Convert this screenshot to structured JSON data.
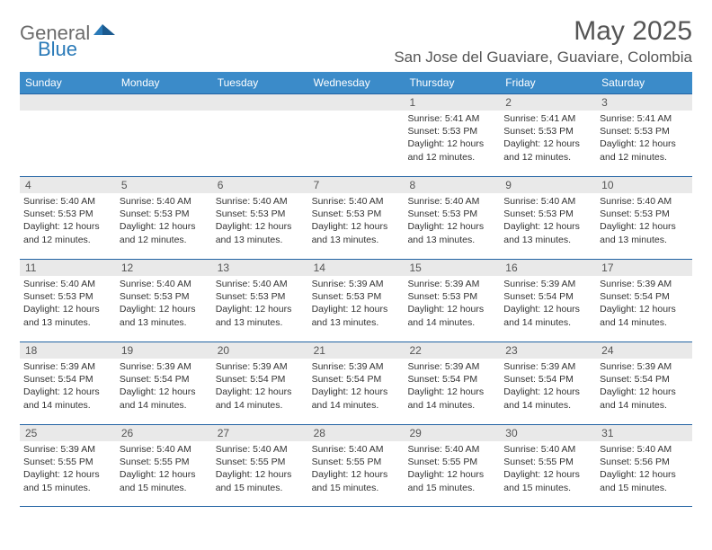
{
  "logo": {
    "text1": "General",
    "text2": "Blue"
  },
  "title": "May 2025",
  "location": "San Jose del Guaviare, Guaviare, Colombia",
  "colors": {
    "headerBar": "#3b8bc9",
    "weekBorder": "#2263a3",
    "dayNumBg": "#e9e9e9",
    "textDark": "#333333",
    "textMuted": "#555555"
  },
  "dow": [
    "Sunday",
    "Monday",
    "Tuesday",
    "Wednesday",
    "Thursday",
    "Friday",
    "Saturday"
  ],
  "weeks": [
    [
      {
        "n": "",
        "sr": "",
        "ss": "",
        "dl": ""
      },
      {
        "n": "",
        "sr": "",
        "ss": "",
        "dl": ""
      },
      {
        "n": "",
        "sr": "",
        "ss": "",
        "dl": ""
      },
      {
        "n": "",
        "sr": "",
        "ss": "",
        "dl": ""
      },
      {
        "n": "1",
        "sr": "5:41 AM",
        "ss": "5:53 PM",
        "dl": "12 hours and 12 minutes."
      },
      {
        "n": "2",
        "sr": "5:41 AM",
        "ss": "5:53 PM",
        "dl": "12 hours and 12 minutes."
      },
      {
        "n": "3",
        "sr": "5:41 AM",
        "ss": "5:53 PM",
        "dl": "12 hours and 12 minutes."
      }
    ],
    [
      {
        "n": "4",
        "sr": "5:40 AM",
        "ss": "5:53 PM",
        "dl": "12 hours and 12 minutes."
      },
      {
        "n": "5",
        "sr": "5:40 AM",
        "ss": "5:53 PM",
        "dl": "12 hours and 12 minutes."
      },
      {
        "n": "6",
        "sr": "5:40 AM",
        "ss": "5:53 PM",
        "dl": "12 hours and 13 minutes."
      },
      {
        "n": "7",
        "sr": "5:40 AM",
        "ss": "5:53 PM",
        "dl": "12 hours and 13 minutes."
      },
      {
        "n": "8",
        "sr": "5:40 AM",
        "ss": "5:53 PM",
        "dl": "12 hours and 13 minutes."
      },
      {
        "n": "9",
        "sr": "5:40 AM",
        "ss": "5:53 PM",
        "dl": "12 hours and 13 minutes."
      },
      {
        "n": "10",
        "sr": "5:40 AM",
        "ss": "5:53 PM",
        "dl": "12 hours and 13 minutes."
      }
    ],
    [
      {
        "n": "11",
        "sr": "5:40 AM",
        "ss": "5:53 PM",
        "dl": "12 hours and 13 minutes."
      },
      {
        "n": "12",
        "sr": "5:40 AM",
        "ss": "5:53 PM",
        "dl": "12 hours and 13 minutes."
      },
      {
        "n": "13",
        "sr": "5:40 AM",
        "ss": "5:53 PM",
        "dl": "12 hours and 13 minutes."
      },
      {
        "n": "14",
        "sr": "5:39 AM",
        "ss": "5:53 PM",
        "dl": "12 hours and 13 minutes."
      },
      {
        "n": "15",
        "sr": "5:39 AM",
        "ss": "5:53 PM",
        "dl": "12 hours and 14 minutes."
      },
      {
        "n": "16",
        "sr": "5:39 AM",
        "ss": "5:54 PM",
        "dl": "12 hours and 14 minutes."
      },
      {
        "n": "17",
        "sr": "5:39 AM",
        "ss": "5:54 PM",
        "dl": "12 hours and 14 minutes."
      }
    ],
    [
      {
        "n": "18",
        "sr": "5:39 AM",
        "ss": "5:54 PM",
        "dl": "12 hours and 14 minutes."
      },
      {
        "n": "19",
        "sr": "5:39 AM",
        "ss": "5:54 PM",
        "dl": "12 hours and 14 minutes."
      },
      {
        "n": "20",
        "sr": "5:39 AM",
        "ss": "5:54 PM",
        "dl": "12 hours and 14 minutes."
      },
      {
        "n": "21",
        "sr": "5:39 AM",
        "ss": "5:54 PM",
        "dl": "12 hours and 14 minutes."
      },
      {
        "n": "22",
        "sr": "5:39 AM",
        "ss": "5:54 PM",
        "dl": "12 hours and 14 minutes."
      },
      {
        "n": "23",
        "sr": "5:39 AM",
        "ss": "5:54 PM",
        "dl": "12 hours and 14 minutes."
      },
      {
        "n": "24",
        "sr": "5:39 AM",
        "ss": "5:54 PM",
        "dl": "12 hours and 14 minutes."
      }
    ],
    [
      {
        "n": "25",
        "sr": "5:39 AM",
        "ss": "5:55 PM",
        "dl": "12 hours and 15 minutes."
      },
      {
        "n": "26",
        "sr": "5:40 AM",
        "ss": "5:55 PM",
        "dl": "12 hours and 15 minutes."
      },
      {
        "n": "27",
        "sr": "5:40 AM",
        "ss": "5:55 PM",
        "dl": "12 hours and 15 minutes."
      },
      {
        "n": "28",
        "sr": "5:40 AM",
        "ss": "5:55 PM",
        "dl": "12 hours and 15 minutes."
      },
      {
        "n": "29",
        "sr": "5:40 AM",
        "ss": "5:55 PM",
        "dl": "12 hours and 15 minutes."
      },
      {
        "n": "30",
        "sr": "5:40 AM",
        "ss": "5:55 PM",
        "dl": "12 hours and 15 minutes."
      },
      {
        "n": "31",
        "sr": "5:40 AM",
        "ss": "5:56 PM",
        "dl": "12 hours and 15 minutes."
      }
    ]
  ],
  "labels": {
    "sunrise": "Sunrise:",
    "sunset": "Sunset:",
    "daylight": "Daylight:"
  }
}
